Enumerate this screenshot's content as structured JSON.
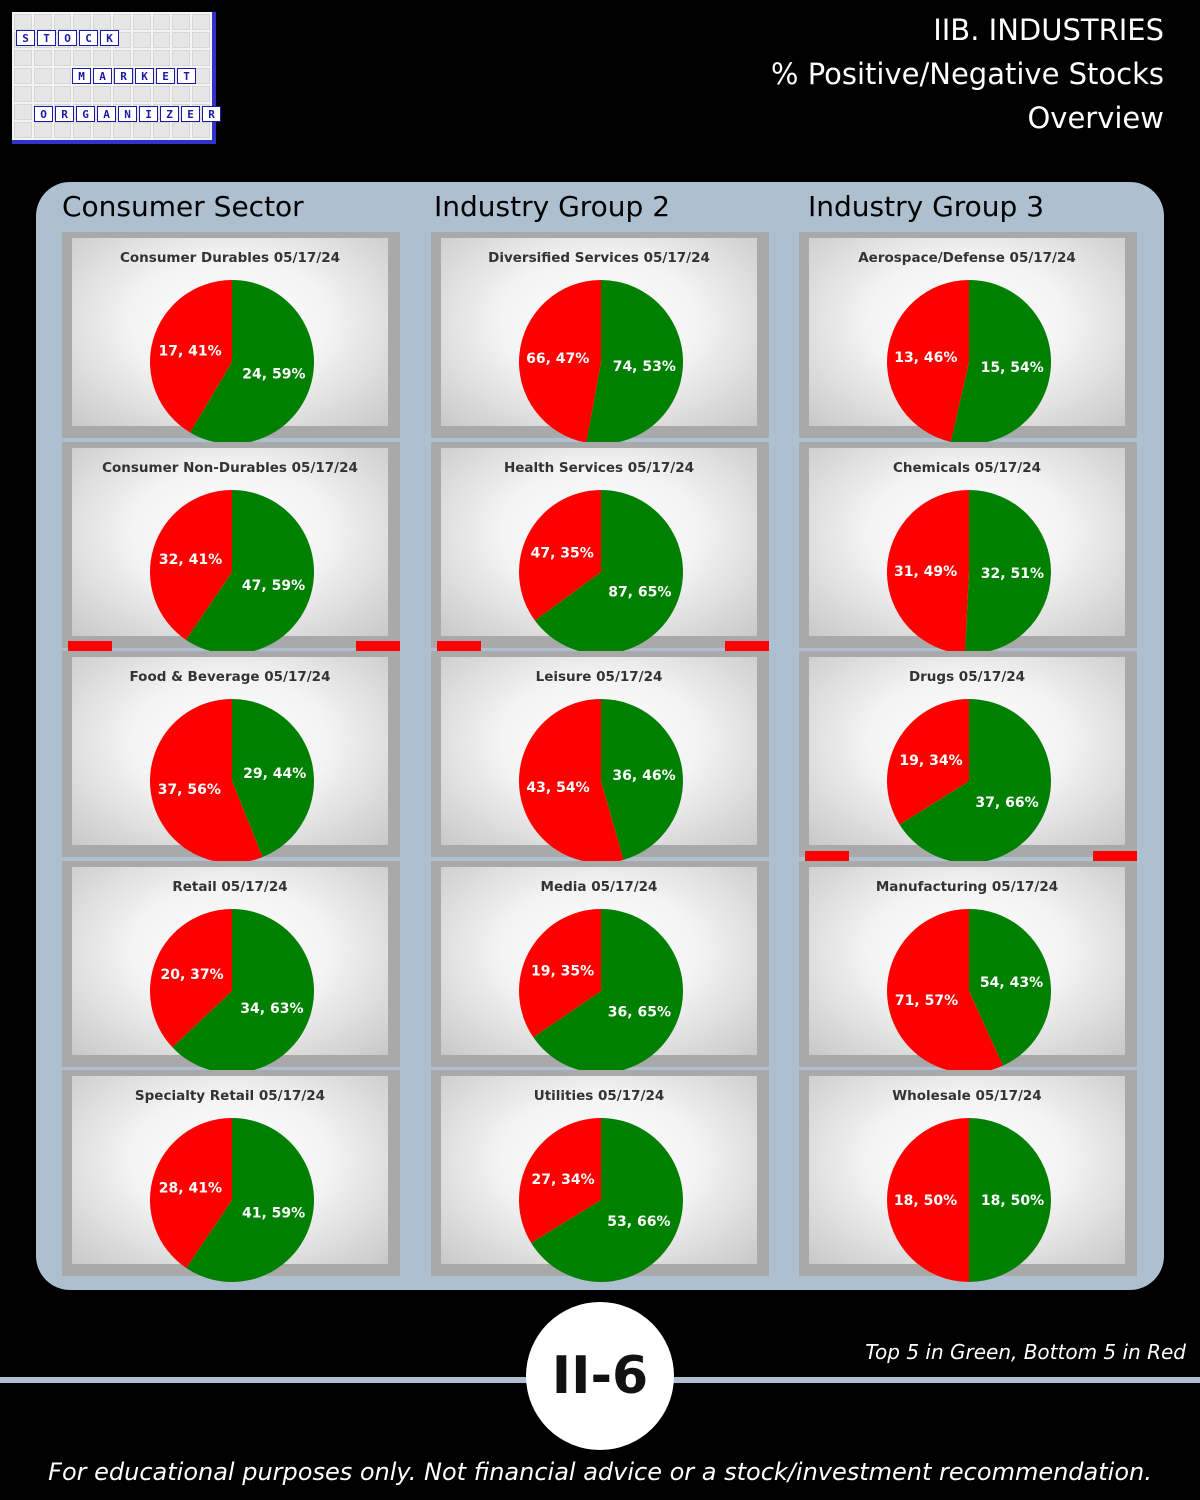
{
  "logo": {
    "rows": [
      [
        "S",
        "T",
        "O",
        "C",
        "K"
      ],
      [
        "M",
        "A",
        "R",
        "K",
        "E",
        "T"
      ],
      [
        "O",
        "R",
        "G",
        "A",
        "N",
        "I",
        "Z",
        "E",
        "R"
      ]
    ]
  },
  "header": {
    "line1": "IIB. INDUSTRIES",
    "line2": "% Positive/Negative Stocks",
    "line3": "Overview"
  },
  "columns": [
    "Consumer Sector",
    "Industry Group 2",
    "Industry Group 3"
  ],
  "colors": {
    "positive": "#008000",
    "negative": "#ff0000",
    "panel": "#aebfd0",
    "highlight_bar": "#ff0000"
  },
  "chart_data": [
    {
      "type": "pie",
      "title": "Consumer Durables 05/17/24",
      "labels": [
        "Positive",
        "Negative"
      ],
      "values": [
        24,
        17
      ],
      "percents": [
        59,
        41
      ],
      "slice_labels": [
        "24, 59%",
        "17, 41%"
      ]
    },
    {
      "type": "pie",
      "title": "Consumer Non-Durables 05/17/24",
      "labels": [
        "Positive",
        "Negative"
      ],
      "values": [
        47,
        32
      ],
      "percents": [
        59,
        41
      ],
      "slice_labels": [
        "47, 59%",
        "32, 41%"
      ]
    },
    {
      "type": "pie",
      "title": "Food & Beverage 05/17/24",
      "labels": [
        "Positive",
        "Negative"
      ],
      "values": [
        29,
        37
      ],
      "percents": [
        44,
        56
      ],
      "slice_labels": [
        "29, 44%",
        "37, 56%"
      ],
      "flag": "bottom5"
    },
    {
      "type": "pie",
      "title": "Retail 05/17/24",
      "labels": [
        "Positive",
        "Negative"
      ],
      "values": [
        34,
        20
      ],
      "percents": [
        63,
        37
      ],
      "slice_labels": [
        "34, 63%",
        "20, 37%"
      ]
    },
    {
      "type": "pie",
      "title": "Specialty Retail 05/17/24",
      "labels": [
        "Positive",
        "Negative"
      ],
      "values": [
        41,
        28
      ],
      "percents": [
        59,
        41
      ],
      "slice_labels": [
        "41, 59%",
        "28, 41%"
      ]
    },
    {
      "type": "pie",
      "title": "Diversified Services 05/17/24",
      "labels": [
        "Positive",
        "Negative"
      ],
      "values": [
        74,
        66
      ],
      "percents": [
        53,
        47
      ],
      "slice_labels": [
        "74, 53%",
        "66, 47%"
      ]
    },
    {
      "type": "pie",
      "title": "Health Services 05/17/24",
      "labels": [
        "Positive",
        "Negative"
      ],
      "values": [
        87,
        47
      ],
      "percents": [
        65,
        35
      ],
      "slice_labels": [
        "87, 65%",
        "47, 35%"
      ]
    },
    {
      "type": "pie",
      "title": "Leisure 05/17/24",
      "labels": [
        "Positive",
        "Negative"
      ],
      "values": [
        36,
        43
      ],
      "percents": [
        46,
        54
      ],
      "slice_labels": [
        "36, 46%",
        "43, 54%"
      ],
      "flag": "bottom5"
    },
    {
      "type": "pie",
      "title": "Media 05/17/24",
      "labels": [
        "Positive",
        "Negative"
      ],
      "values": [
        36,
        19
      ],
      "percents": [
        65,
        35
      ],
      "slice_labels": [
        "36, 65%",
        "19, 35%"
      ]
    },
    {
      "type": "pie",
      "title": "Utilities 05/17/24",
      "labels": [
        "Positive",
        "Negative"
      ],
      "values": [
        53,
        27
      ],
      "percents": [
        66,
        34
      ],
      "slice_labels": [
        "53, 66%",
        "27, 34%"
      ]
    },
    {
      "type": "pie",
      "title": "Aerospace/Defense 05/17/24",
      "labels": [
        "Positive",
        "Negative"
      ],
      "values": [
        15,
        13
      ],
      "percents": [
        54,
        46
      ],
      "slice_labels": [
        "15, 54%",
        "13, 46%"
      ]
    },
    {
      "type": "pie",
      "title": "Chemicals 05/17/24",
      "labels": [
        "Positive",
        "Negative"
      ],
      "values": [
        32,
        31
      ],
      "percents": [
        51,
        49
      ],
      "slice_labels": [
        "32, 51%",
        "31, 49%"
      ]
    },
    {
      "type": "pie",
      "title": "Drugs 05/17/24",
      "labels": [
        "Positive",
        "Negative"
      ],
      "values": [
        37,
        19
      ],
      "percents": [
        66,
        34
      ],
      "slice_labels": [
        "37, 66%",
        "19, 34%"
      ]
    },
    {
      "type": "pie",
      "title": "Manufacturing 05/17/24",
      "labels": [
        "Positive",
        "Negative"
      ],
      "values": [
        54,
        71
      ],
      "percents": [
        43,
        57
      ],
      "slice_labels": [
        "54, 43%",
        "71, 57%"
      ],
      "flag": "bottom5"
    },
    {
      "type": "pie",
      "title": "Wholesale 05/17/24",
      "labels": [
        "Positive",
        "Negative"
      ],
      "values": [
        18,
        18
      ],
      "percents": [
        50,
        50
      ],
      "slice_labels": [
        "18, 50%",
        "18, 50%"
      ]
    }
  ],
  "legend_note": "Top 5 in Green, Bottom 5 in Red",
  "page_number": "II-6",
  "disclaimer": "For educational purposes only. Not financial advice or a stock/investment recommendation."
}
